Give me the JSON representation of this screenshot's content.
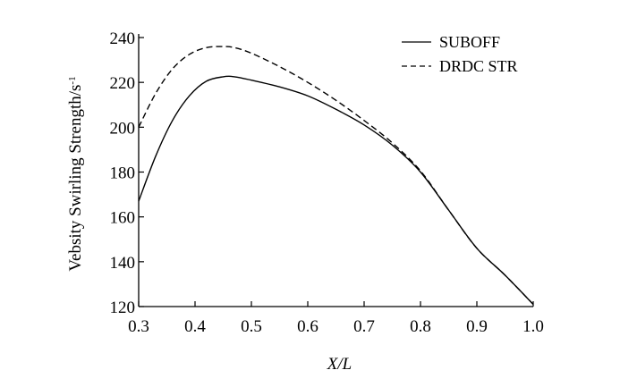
{
  "chart_data": {
    "type": "line",
    "title": "",
    "xlabel": "X/L",
    "ylabel": "Vebsity Swirling Strength/s",
    "ylabel_superscript": "-1",
    "xlim": [
      0.3,
      1.0
    ],
    "ylim": [
      120,
      240
    ],
    "x_ticks": [
      "0.3",
      "0.4",
      "0.5",
      "0.6",
      "0.7",
      "0.8",
      "0.9",
      "1.0"
    ],
    "y_ticks": [
      "120",
      "140",
      "160",
      "180",
      "200",
      "220",
      "240"
    ],
    "grid": false,
    "legend_position": "top-right",
    "series": [
      {
        "name": "SUBOFF",
        "style": "solid",
        "color": "#000000",
        "x": [
          0.3,
          0.33,
          0.36,
          0.39,
          0.42,
          0.45,
          0.47,
          0.5,
          0.55,
          0.6,
          0.65,
          0.7,
          0.75,
          0.8,
          0.85,
          0.9,
          0.95,
          1.0
        ],
        "y": [
          167,
          187,
          203,
          214,
          220.5,
          222.5,
          222.5,
          221,
          218,
          214,
          208,
          201,
          192,
          180,
          163,
          146,
          134,
          121
        ]
      },
      {
        "name": "DRDC STR",
        "style": "dashed",
        "color": "#000000",
        "x": [
          0.3,
          0.33,
          0.36,
          0.39,
          0.42,
          0.45,
          0.47,
          0.5,
          0.55,
          0.6,
          0.65,
          0.7,
          0.75,
          0.8,
          0.85,
          0.9,
          0.95,
          1.0
        ],
        "y": [
          200,
          215,
          226,
          232.5,
          235.5,
          236,
          235.5,
          233,
          227,
          220,
          212,
          203,
          193,
          180.5,
          163,
          146,
          134,
          121
        ]
      }
    ]
  }
}
